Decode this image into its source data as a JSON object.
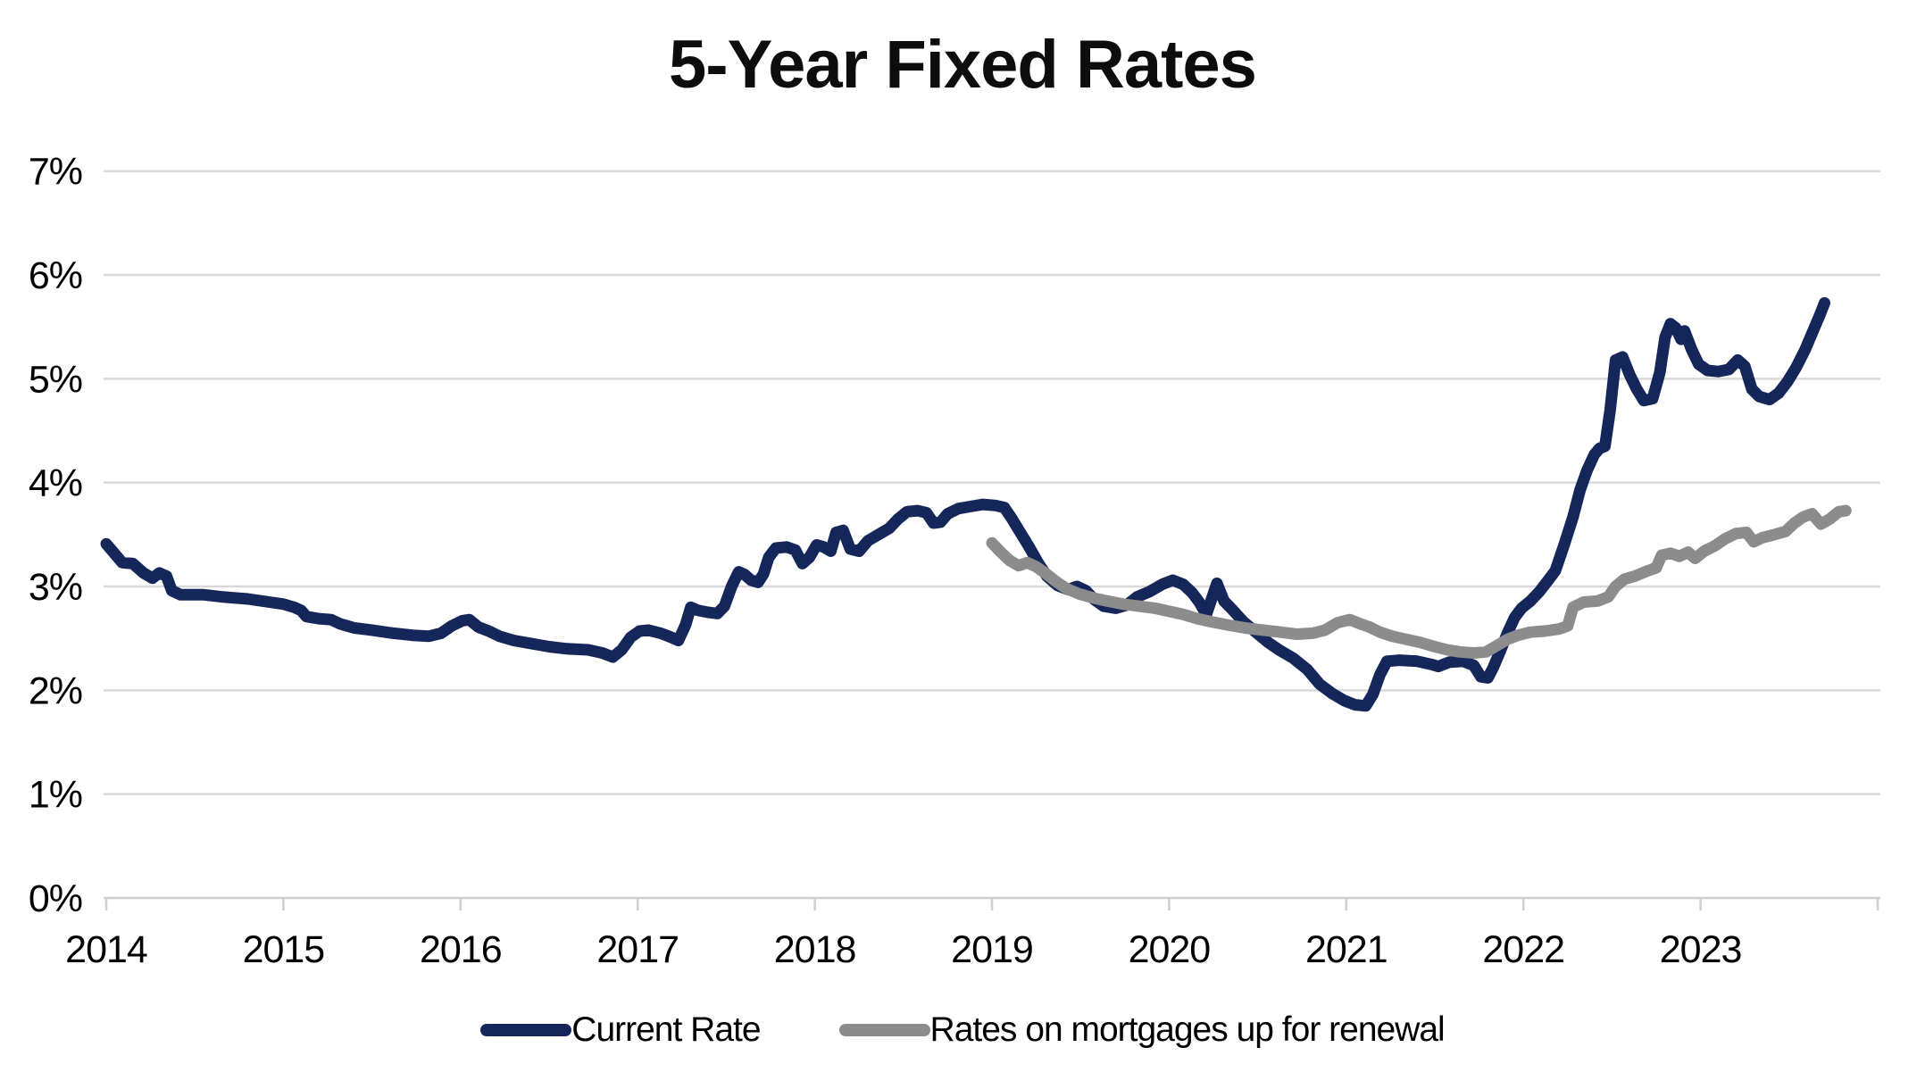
{
  "title": "5-Year Fixed Rates",
  "colors": {
    "current": "#15265B",
    "renewal": "#8C8C8C",
    "grid": "#D9D9D9",
    "axis": "#CFCFCF",
    "text": "#000000"
  },
  "legend": [
    {
      "label": "Current Rate",
      "color": "#15265B"
    },
    {
      "label": "Rates on mortgages up for renewal",
      "color": "#8C8C8C"
    }
  ],
  "chart_data": {
    "type": "line",
    "title": "5-Year Fixed Rates",
    "xlabel": "",
    "ylabel": "",
    "grid": true,
    "legend_position": "bottom",
    "x_axis": {
      "range": [
        2014,
        2024.03
      ],
      "ticks": [
        2014,
        2015,
        2016,
        2017,
        2018,
        2019,
        2020,
        2021,
        2022,
        2023,
        2024
      ],
      "tick_labels": [
        "2014",
        "2015",
        "2016",
        "2017",
        "2018",
        "2019",
        "2020",
        "2021",
        "2022",
        "2023"
      ]
    },
    "y_axis": {
      "range": [
        0,
        7
      ],
      "tick_labels": [
        "0%",
        "1%",
        "2%",
        "3%",
        "4%",
        "5%",
        "6%",
        "7%"
      ]
    },
    "series": [
      {
        "name": "Current Rate",
        "color": "#15265B",
        "points": [
          [
            2014.0,
            3.41
          ],
          [
            2014.04,
            3.33
          ],
          [
            2014.09,
            3.23
          ],
          [
            2014.15,
            3.22
          ],
          [
            2014.21,
            3.13
          ],
          [
            2014.26,
            3.08
          ],
          [
            2014.3,
            3.13
          ],
          [
            2014.34,
            3.1
          ],
          [
            2014.37,
            2.96
          ],
          [
            2014.42,
            2.92
          ],
          [
            2014.55,
            2.92
          ],
          [
            2014.65,
            2.9
          ],
          [
            2014.8,
            2.88
          ],
          [
            2014.92,
            2.85
          ],
          [
            2015.0,
            2.83
          ],
          [
            2015.06,
            2.8
          ],
          [
            2015.1,
            2.77
          ],
          [
            2015.13,
            2.71
          ],
          [
            2015.2,
            2.69
          ],
          [
            2015.27,
            2.68
          ],
          [
            2015.32,
            2.64
          ],
          [
            2015.4,
            2.6
          ],
          [
            2015.5,
            2.58
          ],
          [
            2015.62,
            2.55
          ],
          [
            2015.73,
            2.53
          ],
          [
            2015.82,
            2.52
          ],
          [
            2015.89,
            2.55
          ],
          [
            2015.95,
            2.62
          ],
          [
            2016.01,
            2.67
          ],
          [
            2016.05,
            2.68
          ],
          [
            2016.1,
            2.61
          ],
          [
            2016.16,
            2.57
          ],
          [
            2016.22,
            2.52
          ],
          [
            2016.3,
            2.48
          ],
          [
            2016.4,
            2.45
          ],
          [
            2016.5,
            2.42
          ],
          [
            2016.6,
            2.4
          ],
          [
            2016.72,
            2.39
          ],
          [
            2016.8,
            2.36
          ],
          [
            2016.86,
            2.32
          ],
          [
            2016.91,
            2.39
          ],
          [
            2016.96,
            2.51
          ],
          [
            2017.01,
            2.57
          ],
          [
            2017.06,
            2.58
          ],
          [
            2017.13,
            2.55
          ],
          [
            2017.19,
            2.51
          ],
          [
            2017.23,
            2.48
          ],
          [
            2017.27,
            2.63
          ],
          [
            2017.3,
            2.8
          ],
          [
            2017.34,
            2.77
          ],
          [
            2017.4,
            2.75
          ],
          [
            2017.45,
            2.74
          ],
          [
            2017.49,
            2.81
          ],
          [
            2017.53,
            3.0
          ],
          [
            2017.57,
            3.14
          ],
          [
            2017.6,
            3.12
          ],
          [
            2017.64,
            3.06
          ],
          [
            2017.68,
            3.04
          ],
          [
            2017.71,
            3.12
          ],
          [
            2017.74,
            3.28
          ],
          [
            2017.78,
            3.37
          ],
          [
            2017.84,
            3.38
          ],
          [
            2017.89,
            3.35
          ],
          [
            2017.93,
            3.22
          ],
          [
            2017.97,
            3.28
          ],
          [
            2018.01,
            3.4
          ],
          [
            2018.05,
            3.38
          ],
          [
            2018.09,
            3.34
          ],
          [
            2018.12,
            3.52
          ],
          [
            2018.16,
            3.54
          ],
          [
            2018.2,
            3.36
          ],
          [
            2018.25,
            3.34
          ],
          [
            2018.3,
            3.44
          ],
          [
            2018.36,
            3.5
          ],
          [
            2018.42,
            3.56
          ],
          [
            2018.47,
            3.65
          ],
          [
            2018.52,
            3.72
          ],
          [
            2018.58,
            3.73
          ],
          [
            2018.63,
            3.71
          ],
          [
            2018.67,
            3.61
          ],
          [
            2018.71,
            3.62
          ],
          [
            2018.75,
            3.7
          ],
          [
            2018.81,
            3.75
          ],
          [
            2018.88,
            3.77
          ],
          [
            2018.95,
            3.79
          ],
          [
            2019.02,
            3.78
          ],
          [
            2019.07,
            3.76
          ],
          [
            2019.11,
            3.66
          ],
          [
            2019.16,
            3.52
          ],
          [
            2019.21,
            3.38
          ],
          [
            2019.26,
            3.23
          ],
          [
            2019.31,
            3.1
          ],
          [
            2019.37,
            3.01
          ],
          [
            2019.43,
            2.97
          ],
          [
            2019.48,
            3.0
          ],
          [
            2019.53,
            2.96
          ],
          [
            2019.58,
            2.87
          ],
          [
            2019.63,
            2.81
          ],
          [
            2019.7,
            2.79
          ],
          [
            2019.76,
            2.82
          ],
          [
            2019.82,
            2.9
          ],
          [
            2019.89,
            2.95
          ],
          [
            2019.96,
            3.02
          ],
          [
            2020.02,
            3.06
          ],
          [
            2020.08,
            3.02
          ],
          [
            2020.13,
            2.94
          ],
          [
            2020.17,
            2.85
          ],
          [
            2020.21,
            2.73
          ],
          [
            2020.24,
            2.88
          ],
          [
            2020.27,
            3.03
          ],
          [
            2020.31,
            2.86
          ],
          [
            2020.35,
            2.79
          ],
          [
            2020.42,
            2.66
          ],
          [
            2020.49,
            2.56
          ],
          [
            2020.56,
            2.46
          ],
          [
            2020.62,
            2.39
          ],
          [
            2020.7,
            2.31
          ],
          [
            2020.78,
            2.2
          ],
          [
            2020.85,
            2.06
          ],
          [
            2020.92,
            1.97
          ],
          [
            2020.99,
            1.9
          ],
          [
            2021.05,
            1.86
          ],
          [
            2021.11,
            1.85
          ],
          [
            2021.15,
            1.96
          ],
          [
            2021.19,
            2.15
          ],
          [
            2021.23,
            2.28
          ],
          [
            2021.3,
            2.29
          ],
          [
            2021.4,
            2.28
          ],
          [
            2021.48,
            2.25
          ],
          [
            2021.52,
            2.23
          ],
          [
            2021.58,
            2.27
          ],
          [
            2021.66,
            2.28
          ],
          [
            2021.72,
            2.24
          ],
          [
            2021.76,
            2.13
          ],
          [
            2021.8,
            2.12
          ],
          [
            2021.83,
            2.22
          ],
          [
            2021.87,
            2.38
          ],
          [
            2021.91,
            2.55
          ],
          [
            2021.95,
            2.7
          ],
          [
            2021.99,
            2.79
          ],
          [
            2022.04,
            2.86
          ],
          [
            2022.09,
            2.95
          ],
          [
            2022.14,
            3.06
          ],
          [
            2022.18,
            3.15
          ],
          [
            2022.23,
            3.4
          ],
          [
            2022.28,
            3.67
          ],
          [
            2022.32,
            3.93
          ],
          [
            2022.36,
            4.12
          ],
          [
            2022.4,
            4.27
          ],
          [
            2022.43,
            4.33
          ],
          [
            2022.46,
            4.35
          ],
          [
            2022.49,
            4.7
          ],
          [
            2022.52,
            5.18
          ],
          [
            2022.56,
            5.21
          ],
          [
            2022.6,
            5.04
          ],
          [
            2022.64,
            4.9
          ],
          [
            2022.68,
            4.79
          ],
          [
            2022.73,
            4.81
          ],
          [
            2022.77,
            5.06
          ],
          [
            2022.8,
            5.4
          ],
          [
            2022.83,
            5.53
          ],
          [
            2022.86,
            5.49
          ],
          [
            2022.89,
            5.38
          ],
          [
            2022.91,
            5.46
          ],
          [
            2022.95,
            5.28
          ],
          [
            2022.99,
            5.14
          ],
          [
            2023.04,
            5.08
          ],
          [
            2023.1,
            5.07
          ],
          [
            2023.16,
            5.09
          ],
          [
            2023.21,
            5.18
          ],
          [
            2023.25,
            5.12
          ],
          [
            2023.29,
            4.9
          ],
          [
            2023.33,
            4.83
          ],
          [
            2023.39,
            4.8
          ],
          [
            2023.44,
            4.86
          ],
          [
            2023.49,
            4.97
          ],
          [
            2023.54,
            5.11
          ],
          [
            2023.59,
            5.28
          ],
          [
            2023.63,
            5.44
          ],
          [
            2023.67,
            5.6
          ],
          [
            2023.7,
            5.73
          ]
        ]
      },
      {
        "name": "Rates on mortgages up for renewal",
        "color": "#8C8C8C",
        "points": [
          [
            2019.0,
            3.42
          ],
          [
            2019.05,
            3.33
          ],
          [
            2019.1,
            3.25
          ],
          [
            2019.15,
            3.2
          ],
          [
            2019.2,
            3.23
          ],
          [
            2019.25,
            3.19
          ],
          [
            2019.3,
            3.13
          ],
          [
            2019.36,
            3.05
          ],
          [
            2019.42,
            2.98
          ],
          [
            2019.49,
            2.93
          ],
          [
            2019.57,
            2.89
          ],
          [
            2019.65,
            2.86
          ],
          [
            2019.74,
            2.83
          ],
          [
            2019.83,
            2.81
          ],
          [
            2019.92,
            2.79
          ],
          [
            2020.0,
            2.76
          ],
          [
            2020.08,
            2.73
          ],
          [
            2020.16,
            2.69
          ],
          [
            2020.24,
            2.66
          ],
          [
            2020.33,
            2.63
          ],
          [
            2020.43,
            2.6
          ],
          [
            2020.53,
            2.58
          ],
          [
            2020.63,
            2.56
          ],
          [
            2020.72,
            2.54
          ],
          [
            2020.81,
            2.55
          ],
          [
            2020.88,
            2.58
          ],
          [
            2020.95,
            2.65
          ],
          [
            2021.02,
            2.68
          ],
          [
            2021.08,
            2.64
          ],
          [
            2021.13,
            2.61
          ],
          [
            2021.19,
            2.56
          ],
          [
            2021.26,
            2.52
          ],
          [
            2021.34,
            2.49
          ],
          [
            2021.42,
            2.46
          ],
          [
            2021.5,
            2.42
          ],
          [
            2021.57,
            2.39
          ],
          [
            2021.64,
            2.37
          ],
          [
            2021.72,
            2.36
          ],
          [
            2021.79,
            2.37
          ],
          [
            2021.85,
            2.43
          ],
          [
            2021.91,
            2.49
          ],
          [
            2021.97,
            2.53
          ],
          [
            2022.04,
            2.56
          ],
          [
            2022.12,
            2.57
          ],
          [
            2022.2,
            2.59
          ],
          [
            2022.25,
            2.62
          ],
          [
            2022.28,
            2.8
          ],
          [
            2022.34,
            2.85
          ],
          [
            2022.42,
            2.86
          ],
          [
            2022.48,
            2.9
          ],
          [
            2022.52,
            3.0
          ],
          [
            2022.57,
            3.07
          ],
          [
            2022.63,
            3.1
          ],
          [
            2022.7,
            3.15
          ],
          [
            2022.75,
            3.18
          ],
          [
            2022.78,
            3.3
          ],
          [
            2022.83,
            3.32
          ],
          [
            2022.88,
            3.29
          ],
          [
            2022.93,
            3.33
          ],
          [
            2022.97,
            3.27
          ],
          [
            2023.02,
            3.34
          ],
          [
            2023.08,
            3.39
          ],
          [
            2023.14,
            3.46
          ],
          [
            2023.2,
            3.51
          ],
          [
            2023.26,
            3.52
          ],
          [
            2023.3,
            3.43
          ],
          [
            2023.35,
            3.47
          ],
          [
            2023.42,
            3.5
          ],
          [
            2023.48,
            3.53
          ],
          [
            2023.53,
            3.61
          ],
          [
            2023.58,
            3.67
          ],
          [
            2023.63,
            3.7
          ],
          [
            2023.68,
            3.6
          ],
          [
            2023.73,
            3.65
          ],
          [
            2023.78,
            3.72
          ],
          [
            2023.82,
            3.73
          ]
        ]
      }
    ]
  }
}
